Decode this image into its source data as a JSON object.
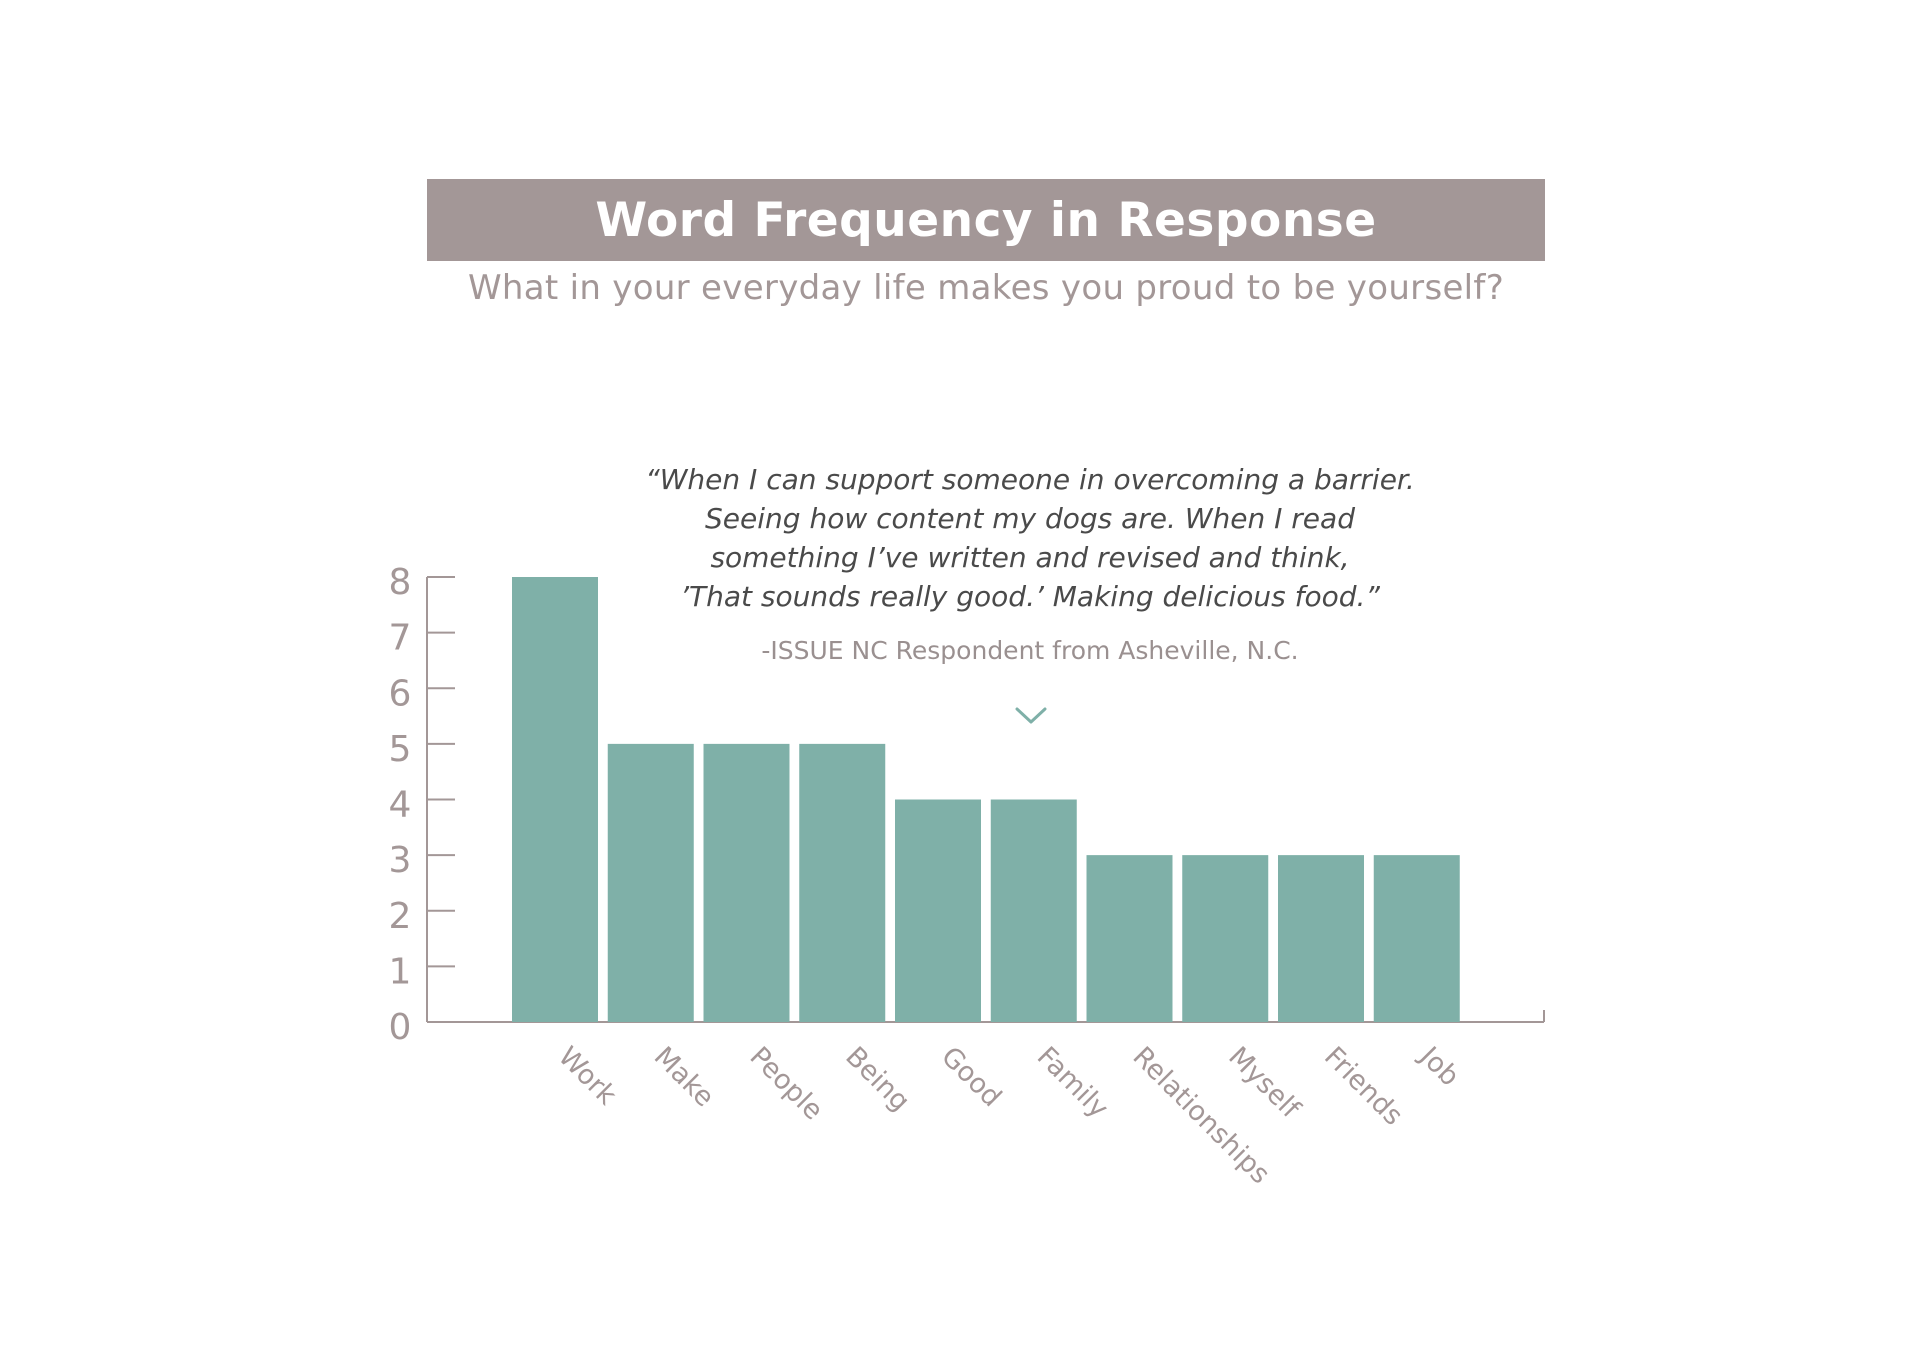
{
  "title": "Word Frequency in Response",
  "subtitle": "What in your everyday life makes you proud to be yourself?",
  "quote": {
    "lines": [
      "“When I can support someone in overcoming a barrier.",
      "Seeing how content my dogs are. When I read",
      "something I’ve written and revised and think,",
      "’That sounds really good.’ Making delicious food.”"
    ],
    "attribution": "-ISSUE NC Respondent from Asheville, N.C.",
    "pointer_icon": "chevron-down-icon"
  },
  "colors": {
    "bar": "#7fb0a8",
    "banner": "#a39797",
    "axis": "#a39797",
    "text_muted": "#a39797",
    "quote_text": "#4a4a4a"
  },
  "chart_data": {
    "type": "bar",
    "title": "Word Frequency in Response",
    "categories": [
      "Work",
      "Make",
      "People",
      "Being",
      "Good",
      "Family",
      "Relationships",
      "Myself",
      "Friends",
      "Job"
    ],
    "values": [
      8,
      5,
      5,
      5,
      4,
      4,
      3,
      3,
      3,
      3
    ],
    "ylim": [
      0,
      8
    ],
    "yticks": [
      0,
      1,
      2,
      3,
      4,
      5,
      6,
      7,
      8
    ],
    "xlabel": "",
    "ylabel": "",
    "grid": false,
    "legend": "none"
  }
}
